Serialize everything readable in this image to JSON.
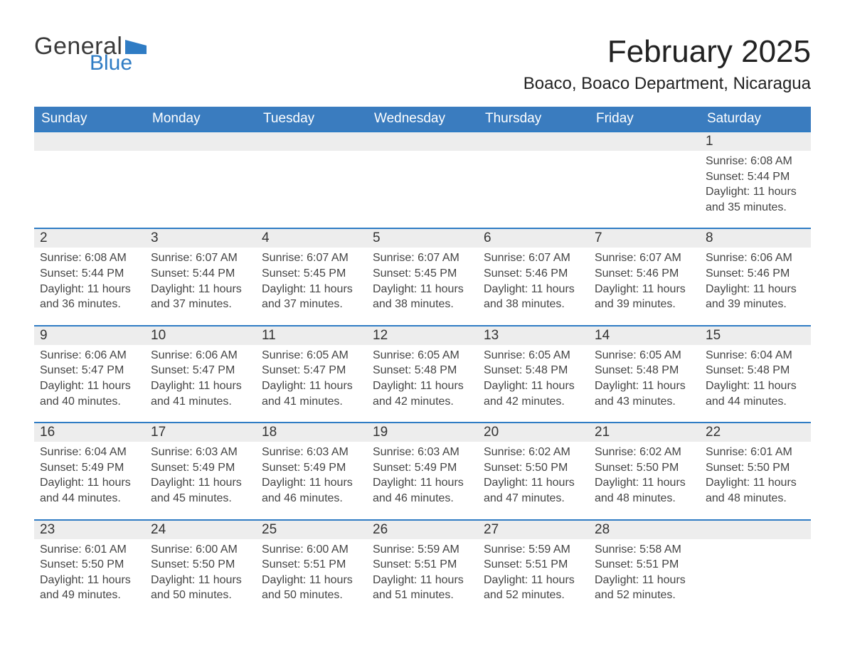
{
  "brand": {
    "word1": "General",
    "word2": "Blue",
    "color": "#2f7cc4"
  },
  "title": "February 2025",
  "location": "Boaco, Boaco Department, Nicaragua",
  "style": {
    "header_bg": "#3a7cbf",
    "header_text": "#ffffff",
    "row_border": "#2f7cc4",
    "daynum_bg": "#ededed",
    "page_bg": "#ffffff",
    "text_color": "#333333",
    "title_fontsize_pt": 33,
    "location_fontsize_pt": 18,
    "header_fontsize_pt": 14,
    "body_fontsize_pt": 12,
    "columns": 7,
    "rows": 5
  },
  "weekdays": [
    "Sunday",
    "Monday",
    "Tuesday",
    "Wednesday",
    "Thursday",
    "Friday",
    "Saturday"
  ],
  "labels": {
    "sunrise": "Sunrise:",
    "sunset": "Sunset:",
    "daylight": "Daylight:"
  },
  "weeks": [
    [
      {
        "blank": true
      },
      {
        "blank": true
      },
      {
        "blank": true
      },
      {
        "blank": true
      },
      {
        "blank": true
      },
      {
        "blank": true
      },
      {
        "day": 1,
        "sunrise": "6:08 AM",
        "sunset": "5:44 PM",
        "daylight": "11 hours and 35 minutes."
      }
    ],
    [
      {
        "day": 2,
        "sunrise": "6:08 AM",
        "sunset": "5:44 PM",
        "daylight": "11 hours and 36 minutes."
      },
      {
        "day": 3,
        "sunrise": "6:07 AM",
        "sunset": "5:44 PM",
        "daylight": "11 hours and 37 minutes."
      },
      {
        "day": 4,
        "sunrise": "6:07 AM",
        "sunset": "5:45 PM",
        "daylight": "11 hours and 37 minutes."
      },
      {
        "day": 5,
        "sunrise": "6:07 AM",
        "sunset": "5:45 PM",
        "daylight": "11 hours and 38 minutes."
      },
      {
        "day": 6,
        "sunrise": "6:07 AM",
        "sunset": "5:46 PM",
        "daylight": "11 hours and 38 minutes."
      },
      {
        "day": 7,
        "sunrise": "6:07 AM",
        "sunset": "5:46 PM",
        "daylight": "11 hours and 39 minutes."
      },
      {
        "day": 8,
        "sunrise": "6:06 AM",
        "sunset": "5:46 PM",
        "daylight": "11 hours and 39 minutes."
      }
    ],
    [
      {
        "day": 9,
        "sunrise": "6:06 AM",
        "sunset": "5:47 PM",
        "daylight": "11 hours and 40 minutes."
      },
      {
        "day": 10,
        "sunrise": "6:06 AM",
        "sunset": "5:47 PM",
        "daylight": "11 hours and 41 minutes."
      },
      {
        "day": 11,
        "sunrise": "6:05 AM",
        "sunset": "5:47 PM",
        "daylight": "11 hours and 41 minutes."
      },
      {
        "day": 12,
        "sunrise": "6:05 AM",
        "sunset": "5:48 PM",
        "daylight": "11 hours and 42 minutes."
      },
      {
        "day": 13,
        "sunrise": "6:05 AM",
        "sunset": "5:48 PM",
        "daylight": "11 hours and 42 minutes."
      },
      {
        "day": 14,
        "sunrise": "6:05 AM",
        "sunset": "5:48 PM",
        "daylight": "11 hours and 43 minutes."
      },
      {
        "day": 15,
        "sunrise": "6:04 AM",
        "sunset": "5:48 PM",
        "daylight": "11 hours and 44 minutes."
      }
    ],
    [
      {
        "day": 16,
        "sunrise": "6:04 AM",
        "sunset": "5:49 PM",
        "daylight": "11 hours and 44 minutes."
      },
      {
        "day": 17,
        "sunrise": "6:03 AM",
        "sunset": "5:49 PM",
        "daylight": "11 hours and 45 minutes."
      },
      {
        "day": 18,
        "sunrise": "6:03 AM",
        "sunset": "5:49 PM",
        "daylight": "11 hours and 46 minutes."
      },
      {
        "day": 19,
        "sunrise": "6:03 AM",
        "sunset": "5:49 PM",
        "daylight": "11 hours and 46 minutes."
      },
      {
        "day": 20,
        "sunrise": "6:02 AM",
        "sunset": "5:50 PM",
        "daylight": "11 hours and 47 minutes."
      },
      {
        "day": 21,
        "sunrise": "6:02 AM",
        "sunset": "5:50 PM",
        "daylight": "11 hours and 48 minutes."
      },
      {
        "day": 22,
        "sunrise": "6:01 AM",
        "sunset": "5:50 PM",
        "daylight": "11 hours and 48 minutes."
      }
    ],
    [
      {
        "day": 23,
        "sunrise": "6:01 AM",
        "sunset": "5:50 PM",
        "daylight": "11 hours and 49 minutes."
      },
      {
        "day": 24,
        "sunrise": "6:00 AM",
        "sunset": "5:50 PM",
        "daylight": "11 hours and 50 minutes."
      },
      {
        "day": 25,
        "sunrise": "6:00 AM",
        "sunset": "5:51 PM",
        "daylight": "11 hours and 50 minutes."
      },
      {
        "day": 26,
        "sunrise": "5:59 AM",
        "sunset": "5:51 PM",
        "daylight": "11 hours and 51 minutes."
      },
      {
        "day": 27,
        "sunrise": "5:59 AM",
        "sunset": "5:51 PM",
        "daylight": "11 hours and 52 minutes."
      },
      {
        "day": 28,
        "sunrise": "5:58 AM",
        "sunset": "5:51 PM",
        "daylight": "11 hours and 52 minutes."
      },
      {
        "blank": true
      }
    ]
  ]
}
